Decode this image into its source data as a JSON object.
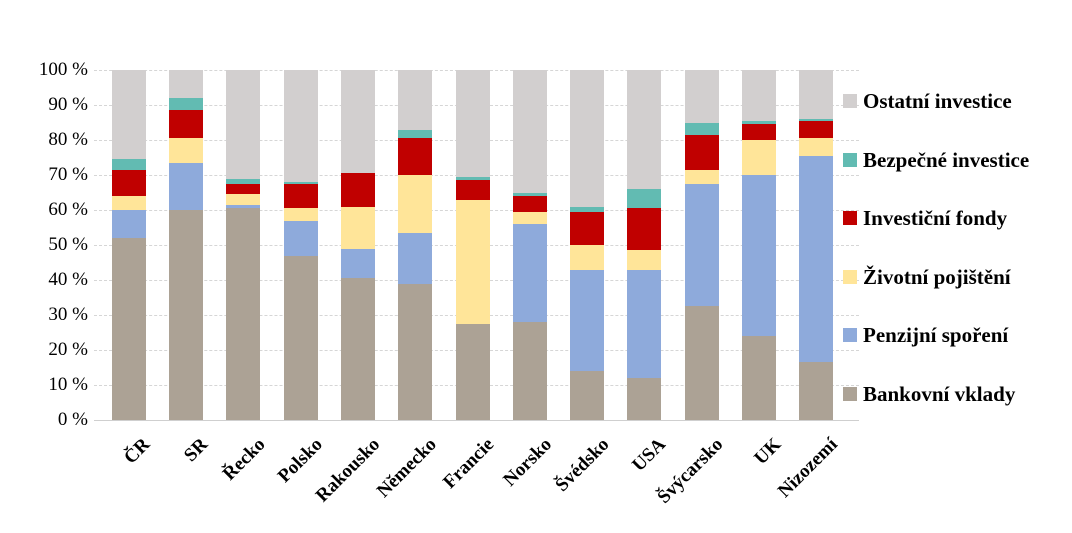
{
  "chart_data": {
    "type": "bar",
    "stacked": true,
    "orientation": "vertical",
    "unit": "%",
    "title": "",
    "xlabel": "",
    "ylabel": "",
    "ylim": [
      0,
      100
    ],
    "grid": true,
    "y_ticks": [
      "100 %",
      "90 %",
      "80 %",
      "70 %",
      "60 %",
      "50 %",
      "40 %",
      "30 %",
      "20 %",
      "10 %",
      "0 %"
    ],
    "categories": [
      "ČR",
      "SR",
      "Řecko",
      "Polsko",
      "Rakousko",
      "Německo",
      "Francie",
      "Norsko",
      "Švédsko",
      "USA",
      "Švýcarsko",
      "UK",
      "Nizozemí"
    ],
    "series": [
      {
        "name": "Bankovní vklady",
        "color": "#ACA295",
        "values": [
          52,
          60,
          60.5,
          47,
          40.5,
          39,
          27.5,
          28,
          14,
          12,
          32.5,
          24,
          16.5
        ]
      },
      {
        "name": "Penzijní spoření",
        "color": "#8EAADB",
        "values": [
          8,
          13.5,
          1,
          10,
          8.5,
          14.5,
          0,
          28,
          29,
          31,
          35,
          46,
          59
        ]
      },
      {
        "name": "Životní pojištění",
        "color": "#FFE599",
        "values": [
          4,
          7,
          3,
          3.5,
          12,
          16.5,
          35.5,
          3.5,
          7,
          5.5,
          4,
          10,
          5
        ]
      },
      {
        "name": "Investiční fondy",
        "color": "#C00000",
        "values": [
          7.5,
          8,
          3,
          7,
          9.5,
          10.5,
          5.5,
          4.5,
          9.5,
          12,
          10,
          4.5,
          5
        ]
      },
      {
        "name": "Bezpečné investice",
        "color": "#62BBB2",
        "values": [
          3,
          3.5,
          1.5,
          0.5,
          0,
          2.5,
          1,
          1,
          1.5,
          5.5,
          3.5,
          1,
          0.5
        ]
      },
      {
        "name": "Ostatní investice",
        "color": "#D2CFCF",
        "values": [
          25.5,
          8,
          31,
          32,
          29.5,
          17,
          30.5,
          35,
          39,
          34,
          15,
          14.5,
          14
        ]
      }
    ],
    "legend": {
      "position": "right",
      "items": [
        {
          "label": "Ostatní investice",
          "color": "#D2CFCF"
        },
        {
          "label": "Bezpečné investice",
          "color": "#62BBB2"
        },
        {
          "label": "Investiční fondy",
          "color": "#C00000"
        },
        {
          "label": "Životní pojištění",
          "color": "#FFE599"
        },
        {
          "label": "Penzijní spoření",
          "color": "#8EAADB"
        },
        {
          "label": "Bankovní vklady",
          "color": "#ACA295"
        }
      ]
    }
  }
}
